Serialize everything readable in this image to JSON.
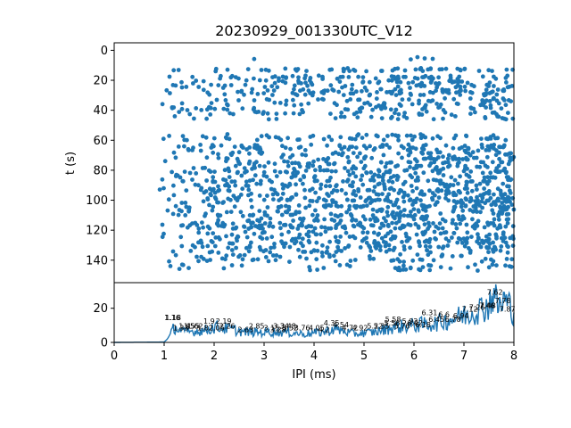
{
  "chart_data": [
    {
      "type": "scatter",
      "title": "20230929_001330UTC_V12",
      "xlabel": "",
      "ylabel": "t (s)",
      "xlim": [
        0,
        8
      ],
      "ylim": [
        155,
        -5
      ],
      "y_inverted": true,
      "yticks": [
        "0",
        "20",
        "40",
        "60",
        "80",
        "100",
        "120",
        "140"
      ],
      "xticks": [],
      "grid": false,
      "color": "#1f77b4",
      "row_times": [
        5,
        13,
        18,
        21,
        24,
        27,
        29,
        33,
        36,
        39,
        42,
        45,
        57,
        59,
        64,
        66,
        69,
        72,
        75,
        78,
        81,
        84,
        87,
        90,
        93,
        96,
        99,
        101,
        104,
        107,
        110,
        113,
        116,
        118,
        122,
        125,
        128,
        131,
        134,
        137,
        140,
        144,
        146
      ],
      "row_density": [
        0.06,
        0.55,
        0.62,
        0.5,
        0.48,
        0.56,
        0.5,
        0.4,
        0.42,
        0.45,
        0.4,
        0.3,
        0.38,
        0.42,
        0.55,
        0.45,
        0.48,
        0.52,
        0.55,
        0.58,
        0.7,
        0.55,
        0.6,
        0.55,
        0.65,
        0.62,
        0.68,
        0.6,
        0.72,
        0.62,
        0.6,
        0.55,
        0.7,
        0.75,
        0.5,
        0.62,
        0.68,
        0.6,
        0.45,
        0.3,
        0.4,
        0.25,
        0.2
      ],
      "x_range": [
        0.9,
        8.0
      ]
    },
    {
      "type": "line",
      "xlabel": "IPI (ms)",
      "ylabel": "",
      "xlim": [
        0,
        8
      ],
      "ylim": [
        0,
        35
      ],
      "xticks": [
        "0",
        "1",
        "2",
        "3",
        "4",
        "5",
        "6",
        "7",
        "8"
      ],
      "yticks": [
        "0",
        "20"
      ],
      "grid": false,
      "color": "#1f77b4",
      "envelope": [
        [
          0,
          0
        ],
        [
          1.0,
          0.2
        ],
        [
          1.1,
          3
        ],
        [
          1.2,
          9
        ],
        [
          1.4,
          6
        ],
        [
          1.8,
          7
        ],
        [
          2.0,
          9
        ],
        [
          2.3,
          8
        ],
        [
          2.6,
          6
        ],
        [
          3.0,
          6
        ],
        [
          3.4,
          6
        ],
        [
          3.8,
          5
        ],
        [
          4.2,
          6
        ],
        [
          4.4,
          8
        ],
        [
          4.8,
          5
        ],
        [
          5.2,
          6
        ],
        [
          5.6,
          9
        ],
        [
          6.0,
          10
        ],
        [
          6.4,
          11
        ],
        [
          6.8,
          14
        ],
        [
          7.2,
          18
        ],
        [
          7.5,
          22
        ],
        [
          7.6,
          30
        ],
        [
          7.7,
          20
        ],
        [
          7.8,
          25
        ],
        [
          7.9,
          22
        ],
        [
          8.0,
          18
        ]
      ],
      "peak_labels": [
        {
          "x": 1.16,
          "y": 13,
          "text": "1.16"
        },
        {
          "x": 1.18,
          "y": 13,
          "text": "1.18"
        },
        {
          "x": 1.33,
          "y": 7,
          "text": "1.33"
        },
        {
          "x": 1.45,
          "y": 8,
          "text": "1.45"
        },
        {
          "x": 1.55,
          "y": 8,
          "text": "1.55"
        },
        {
          "x": 1.62,
          "y": 8,
          "text": "1.62"
        },
        {
          "x": 1.82,
          "y": 7,
          "text": "1.82"
        },
        {
          "x": 1.9,
          "y": 11,
          "text": "1.9"
        },
        {
          "x": 2.05,
          "y": 7,
          "text": "2.05"
        },
        {
          "x": 2.19,
          "y": 11,
          "text": "2.19"
        },
        {
          "x": 2.26,
          "y": 8,
          "text": "2.26"
        },
        {
          "x": 2.63,
          "y": 6,
          "text": "2.63"
        },
        {
          "x": 2.85,
          "y": 8,
          "text": "2.85"
        },
        {
          "x": 3.15,
          "y": 7,
          "text": "3.15"
        },
        {
          "x": 3.28,
          "y": 6,
          "text": "3.28"
        },
        {
          "x": 3.34,
          "y": 8,
          "text": "3.34"
        },
        {
          "x": 3.48,
          "y": 8,
          "text": "3.48"
        },
        {
          "x": 3.52,
          "y": 7,
          "text": "3.52"
        },
        {
          "x": 3.76,
          "y": 7,
          "text": "3.76"
        },
        {
          "x": 4.05,
          "y": 7,
          "text": "4.05"
        },
        {
          "x": 4.2,
          "y": 6,
          "text": "4.2"
        },
        {
          "x": 4.35,
          "y": 10,
          "text": "4.35"
        },
        {
          "x": 4.54,
          "y": 9,
          "text": "4.54"
        },
        {
          "x": 4.72,
          "y": 7,
          "text": "4.72"
        },
        {
          "x": 4.92,
          "y": 7,
          "text": "4.92"
        },
        {
          "x": 5.22,
          "y": 8,
          "text": "5.22"
        },
        {
          "x": 5.35,
          "y": 8,
          "text": "5.35"
        },
        {
          "x": 5.56,
          "y": 10,
          "text": "5.56"
        },
        {
          "x": 5.58,
          "y": 12,
          "text": "5.58"
        },
        {
          "x": 5.76,
          "y": 8,
          "text": "5.76"
        },
        {
          "x": 5.92,
          "y": 11,
          "text": "5.92"
        },
        {
          "x": 6.02,
          "y": 10,
          "text": "6.02"
        },
        {
          "x": 6.18,
          "y": 9,
          "text": "6.18"
        },
        {
          "x": 6.31,
          "y": 16,
          "text": "6.31"
        },
        {
          "x": 6.45,
          "y": 12,
          "text": "6.45"
        },
        {
          "x": 6.6,
          "y": 15,
          "text": "6.6"
        },
        {
          "x": 6.78,
          "y": 12,
          "text": "6.78"
        },
        {
          "x": 6.94,
          "y": 14,
          "text": "6.94"
        },
        {
          "x": 7.12,
          "y": 18,
          "text": "7.12"
        },
        {
          "x": 7.26,
          "y": 19,
          "text": "7.26"
        },
        {
          "x": 7.46,
          "y": 20,
          "text": "7.46"
        },
        {
          "x": 7.48,
          "y": 20,
          "text": "7.48"
        },
        {
          "x": 7.62,
          "y": 28,
          "text": "7.62"
        },
        {
          "x": 7.78,
          "y": 23,
          "text": "7.78"
        },
        {
          "x": 7.87,
          "y": 18,
          "text": "7.87"
        }
      ]
    }
  ]
}
